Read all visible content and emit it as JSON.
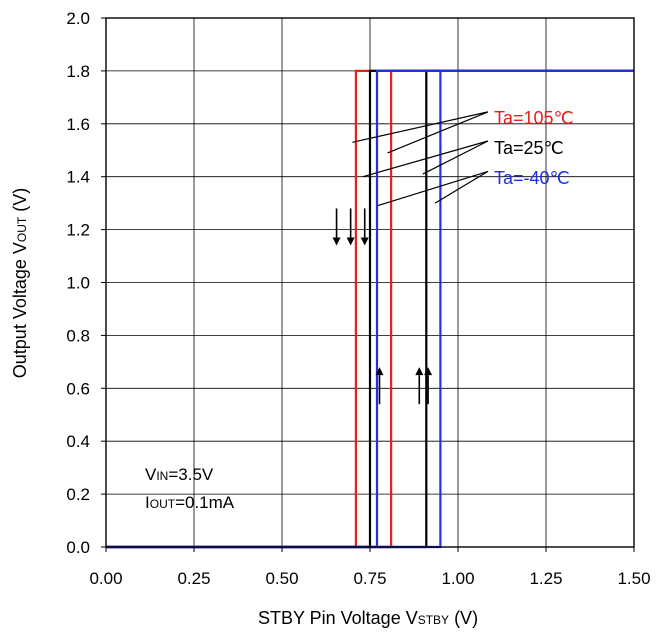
{
  "chart_data": {
    "type": "line",
    "xlabel": {
      "main": "STBY Pin Voltage V",
      "sub": "STBY",
      "unit": " (V)"
    },
    "ylabel": {
      "main": "Output Voltage V",
      "sub": "OUT",
      "unit": " (V)"
    },
    "xlim": [
      0,
      1.5
    ],
    "ylim": [
      0,
      2.0
    ],
    "x_ticks": [
      "0.00",
      "0.25",
      "0.50",
      "0.75",
      "1.00",
      "1.25",
      "1.50"
    ],
    "y_ticks": [
      "0.0",
      "0.2",
      "0.4",
      "0.6",
      "0.8",
      "1.0",
      "1.2",
      "1.4",
      "1.6",
      "1.8",
      "2.0"
    ],
    "grid": true,
    "conditions": [
      {
        "main": "V",
        "sub": "IN",
        "rest": "=3.5V"
      },
      {
        "main": "I",
        "sub": "OUT",
        "rest": "=0.1mA"
      }
    ],
    "series": [
      {
        "name": "Ta=105℃",
        "color": "#e8201d",
        "rising": {
          "threshold": 0.81,
          "x": [
            0,
            0.81,
            0.81,
            1.5
          ],
          "y": [
            0,
            0,
            1.8,
            1.8
          ]
        },
        "falling": {
          "threshold": 0.71,
          "x": [
            1.5,
            0.71,
            0.71,
            0
          ],
          "y": [
            1.8,
            1.8,
            0,
            0
          ]
        }
      },
      {
        "name": "Ta=25℃",
        "color": "#000000",
        "rising": {
          "threshold": 0.91,
          "x": [
            0,
            0.91,
            0.91,
            1.5
          ],
          "y": [
            0,
            0,
            1.8,
            1.8
          ]
        },
        "falling": {
          "threshold": 0.75,
          "x": [
            1.5,
            0.75,
            0.75,
            0
          ],
          "y": [
            1.8,
            1.8,
            0,
            0
          ]
        }
      },
      {
        "name": "Ta=-40℃",
        "color": "#1f31e6",
        "rising": {
          "threshold": 0.95,
          "x": [
            0,
            0.95,
            0.95,
            1.5
          ],
          "y": [
            0,
            0,
            1.8,
            1.8
          ]
        },
        "falling": {
          "threshold": 0.77,
          "x": [
            1.5,
            0.77,
            0.77,
            0
          ],
          "y": [
            1.8,
            1.8,
            0,
            0
          ]
        }
      }
    ]
  }
}
